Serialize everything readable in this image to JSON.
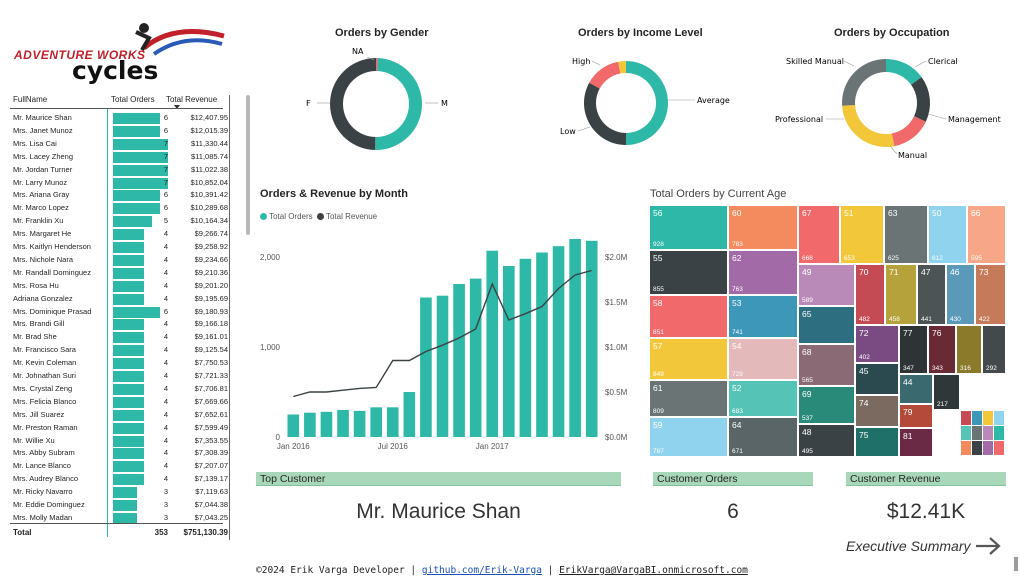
{
  "logo": {
    "line1": "ADVENTURE WORKS",
    "line2": "cycles"
  },
  "table": {
    "headers": {
      "name": "FullName",
      "orders": "Total Orders",
      "revenue": "Total Revenue"
    },
    "rows": [
      {
        "name": "Mr. Maurice Shan",
        "orders": 6,
        "revenue": "$12,407.95"
      },
      {
        "name": "Mrs. Janet Munoz",
        "orders": 6,
        "revenue": "$12,015.39"
      },
      {
        "name": "Mrs. Lisa Cai",
        "orders": 7,
        "revenue": "$11,330.44"
      },
      {
        "name": "Mrs. Lacey Zheng",
        "orders": 7,
        "revenue": "$11,085.74"
      },
      {
        "name": "Mr. Jordan Turner",
        "orders": 7,
        "revenue": "$11,022.38"
      },
      {
        "name": "Mr. Larry Munoz",
        "orders": 7,
        "revenue": "$10,852.04"
      },
      {
        "name": "Mrs. Ariana Gray",
        "orders": 6,
        "revenue": "$10,391.42"
      },
      {
        "name": "Mr. Marco Lopez",
        "orders": 6,
        "revenue": "$10,289.68"
      },
      {
        "name": "Mr. Franklin Xu",
        "orders": 5,
        "revenue": "$10,164.34"
      },
      {
        "name": "Mrs. Margaret He",
        "orders": 4,
        "revenue": "$9,266.74"
      },
      {
        "name": "Mrs. Kaitlyn Henderson",
        "orders": 4,
        "revenue": "$9,258.92"
      },
      {
        "name": "Mrs. Nichole Nara",
        "orders": 4,
        "revenue": "$9,234.66"
      },
      {
        "name": "Mr. Randall Dominguez",
        "orders": 4,
        "revenue": "$9,210.36"
      },
      {
        "name": "Mrs. Rosa Hu",
        "orders": 4,
        "revenue": "$9,201.20"
      },
      {
        "name": "Adriana Gonzalez",
        "orders": 4,
        "revenue": "$9,195.69"
      },
      {
        "name": "Mrs. Dominique Prasad",
        "orders": 6,
        "revenue": "$9,180.93"
      },
      {
        "name": "Mrs. Brandi Gill",
        "orders": 4,
        "revenue": "$9,166.18"
      },
      {
        "name": "Mr. Brad She",
        "orders": 4,
        "revenue": "$9,161.01"
      },
      {
        "name": "Mr. Francisco Sara",
        "orders": 4,
        "revenue": "$9,125.54"
      },
      {
        "name": "Mr. Kevin Coleman",
        "orders": 4,
        "revenue": "$7,750.53"
      },
      {
        "name": "Mr. Johnathan Suri",
        "orders": 4,
        "revenue": "$7,721.33"
      },
      {
        "name": "Mrs. Crystal Zeng",
        "orders": 4,
        "revenue": "$7,706.81"
      },
      {
        "name": "Mrs. Felicia Blanco",
        "orders": 4,
        "revenue": "$7,669.66"
      },
      {
        "name": "Mrs. Jill Suarez",
        "orders": 4,
        "revenue": "$7,652.61"
      },
      {
        "name": "Mr. Preston Raman",
        "orders": 4,
        "revenue": "$7,599.49"
      },
      {
        "name": "Mr. Willie Xu",
        "orders": 4,
        "revenue": "$7,353.55"
      },
      {
        "name": "Mrs. Abby Subram",
        "orders": 4,
        "revenue": "$7,308.39"
      },
      {
        "name": "Mr. Lance Blanco",
        "orders": 4,
        "revenue": "$7,207.07"
      },
      {
        "name": "Mrs. Audrey Blanco",
        "orders": 4,
        "revenue": "$7,139.17"
      },
      {
        "name": "Mr. Ricky Navarro",
        "orders": 3,
        "revenue": "$7,119.63"
      },
      {
        "name": "Mr. Eddie Dominguez",
        "orders": 3,
        "revenue": "$7,044.38"
      },
      {
        "name": "Mrs. Molly Madan",
        "orders": 3,
        "revenue": "$7,043.25"
      }
    ],
    "total": {
      "label": "Total",
      "orders": "353",
      "revenue": "$751,130.39"
    }
  },
  "gender": {
    "title": "Orders by Gender",
    "labels": {
      "na": "NA",
      "f": "F",
      "m": "M"
    }
  },
  "income": {
    "title": "Orders by Income Level",
    "labels": {
      "high": "High",
      "low": "Low",
      "average": "Average"
    }
  },
  "occupation": {
    "title": "Orders by Occupation",
    "labels": {
      "skilled": "Skilled Manual",
      "clerical": "Clerical",
      "professional": "Professional",
      "management": "Management",
      "manual": "Manual"
    }
  },
  "colors": {
    "teal": "#2eb8a8",
    "dark": "#3b4245",
    "red": "#f2696b",
    "yellow": "#f2c83a",
    "gray": "#6a7475",
    "header": "#a8d8b9"
  },
  "monthly": {
    "title": "Orders & Revenue by Month",
    "legend_orders": "Total Orders",
    "legend_revenue": "Total Revenue",
    "y_left_ticks": [
      "0",
      "1,000",
      "2,000"
    ],
    "y_right_ticks": [
      "$0.0M",
      "$0.5M",
      "$1.0M",
      "$1.5M",
      "$2.0M"
    ],
    "x_ticks": [
      "Jan 2016",
      "Jul 2016",
      "Jan 2017"
    ]
  },
  "chart_data": {
    "type": "bar",
    "categories": [
      "Jan 2016",
      "Feb 2016",
      "Mar 2016",
      "Apr 2016",
      "May 2016",
      "Jun 2016",
      "Jul 2016",
      "Aug 2016",
      "Sep 2016",
      "Oct 2016",
      "Nov 2016",
      "Dec 2016",
      "Jan 2017",
      "Feb 2017",
      "Mar 2017",
      "Apr 2017",
      "May 2017",
      "Jun 2017",
      "Jul 2017"
    ],
    "series": [
      {
        "name": "Total Orders",
        "values": [
          250,
          270,
          280,
          300,
          290,
          330,
          330,
          500,
          1550,
          1570,
          1700,
          1760,
          2070,
          1900,
          1980,
          2050,
          2120,
          2200,
          2180
        ]
      },
      {
        "name": "Total Revenue",
        "values": [
          0.45,
          0.5,
          0.5,
          0.52,
          0.54,
          0.55,
          0.85,
          0.85,
          0.95,
          1.02,
          1.1,
          1.2,
          1.7,
          1.3,
          1.37,
          1.45,
          1.65,
          1.8,
          1.85
        ]
      }
    ],
    "ylim": [
      0,
      2300
    ],
    "y2lim": [
      0,
      2.3
    ]
  },
  "age": {
    "title": "Total Orders by Current Age",
    "tiles": [
      {
        "age": "56",
        "count": "928",
        "color": "#2eb8a8"
      },
      {
        "age": "60",
        "count": "783",
        "color": "#f38b5e"
      },
      {
        "age": "67",
        "count": "668",
        "color": "#f2696b"
      },
      {
        "age": "51",
        "count": "653",
        "color": "#f2c83a"
      },
      {
        "age": "63",
        "count": "625",
        "color": "#6a7475"
      },
      {
        "age": "50",
        "count": "612",
        "color": "#8fd3ee"
      },
      {
        "age": "66",
        "count": "595",
        "color": "#f7a788"
      },
      {
        "age": "55",
        "count": "855",
        "color": "#3b4245"
      },
      {
        "age": "62",
        "count": "763",
        "color": "#a36aa8"
      },
      {
        "age": "49",
        "count": "589",
        "color": "#b98ab8"
      },
      {
        "age": "70",
        "count": "482",
        "color": "#c44a54"
      },
      {
        "age": "71",
        "count": "458",
        "color": "#b5a23a"
      },
      {
        "age": "47",
        "count": "441",
        "color": "#4d5456"
      },
      {
        "age": "46",
        "count": "430",
        "color": "#5a9ab8"
      },
      {
        "age": "73",
        "count": "422",
        "color": "#c57a5a"
      },
      {
        "age": "58",
        "count": "851",
        "color": "#f2696b"
      },
      {
        "age": "53",
        "count": "741",
        "color": "#3c97b8"
      },
      {
        "age": "65",
        "count": "",
        "color": "#2d6e80"
      },
      {
        "age": "72",
        "count": "402",
        "color": "#7a4a82"
      },
      {
        "age": "77",
        "count": "347",
        "color": "#2e3436"
      },
      {
        "age": "76",
        "count": "343",
        "color": "#6a2a35"
      },
      {
        "age": "",
        "count": "316",
        "color": "#8a7a2a"
      },
      {
        "age": "",
        "count": "292",
        "color": "#444a4c"
      },
      {
        "age": "57",
        "count": "849",
        "color": "#f2c83a"
      },
      {
        "age": "54",
        "count": "729",
        "color": "#e3b9b9"
      },
      {
        "age": "68",
        "count": "565",
        "color": "#8a6a75"
      },
      {
        "age": "45",
        "count": "",
        "color": "#2a4a50"
      },
      {
        "age": "44",
        "count": "",
        "color": "#3a6a70"
      },
      {
        "age": "",
        "count": "217",
        "color": "#2f3739"
      },
      {
        "age": "61",
        "count": "809",
        "color": "#6a7475"
      },
      {
        "age": "52",
        "count": "683",
        "color": "#55c4b6"
      },
      {
        "age": "69",
        "count": "537",
        "color": "#2a8a7a"
      },
      {
        "age": "74",
        "count": "",
        "color": "#7a6a60"
      },
      {
        "age": "79",
        "count": "",
        "color": "#b34a3a"
      },
      {
        "age": "59",
        "count": "787",
        "color": "#8fd3ee"
      },
      {
        "age": "64",
        "count": "671",
        "color": "#5a6567"
      },
      {
        "age": "48",
        "count": "495",
        "color": "#3b4245"
      },
      {
        "age": "75",
        "count": "",
        "color": "#1f7068"
      },
      {
        "age": "81",
        "count": "",
        "color": "#6a2a45"
      }
    ]
  },
  "cards": {
    "top_customer": {
      "label": "Top Customer",
      "value": "Mr. Maurice Shan"
    },
    "customer_orders": {
      "label": "Customer Orders",
      "value": "6"
    },
    "customer_revenue": {
      "label": "Customer Revenue",
      "value": "$12.41K"
    }
  },
  "nav": {
    "exec_summary": "Executive Summary"
  },
  "footer": {
    "text": "©2024 Erik Varga Developer | ",
    "link1": "github.com/Erik-Varga",
    "sep": " | ",
    "link2": "ErikVarga@VargaBI.onmicrosoft.com"
  }
}
